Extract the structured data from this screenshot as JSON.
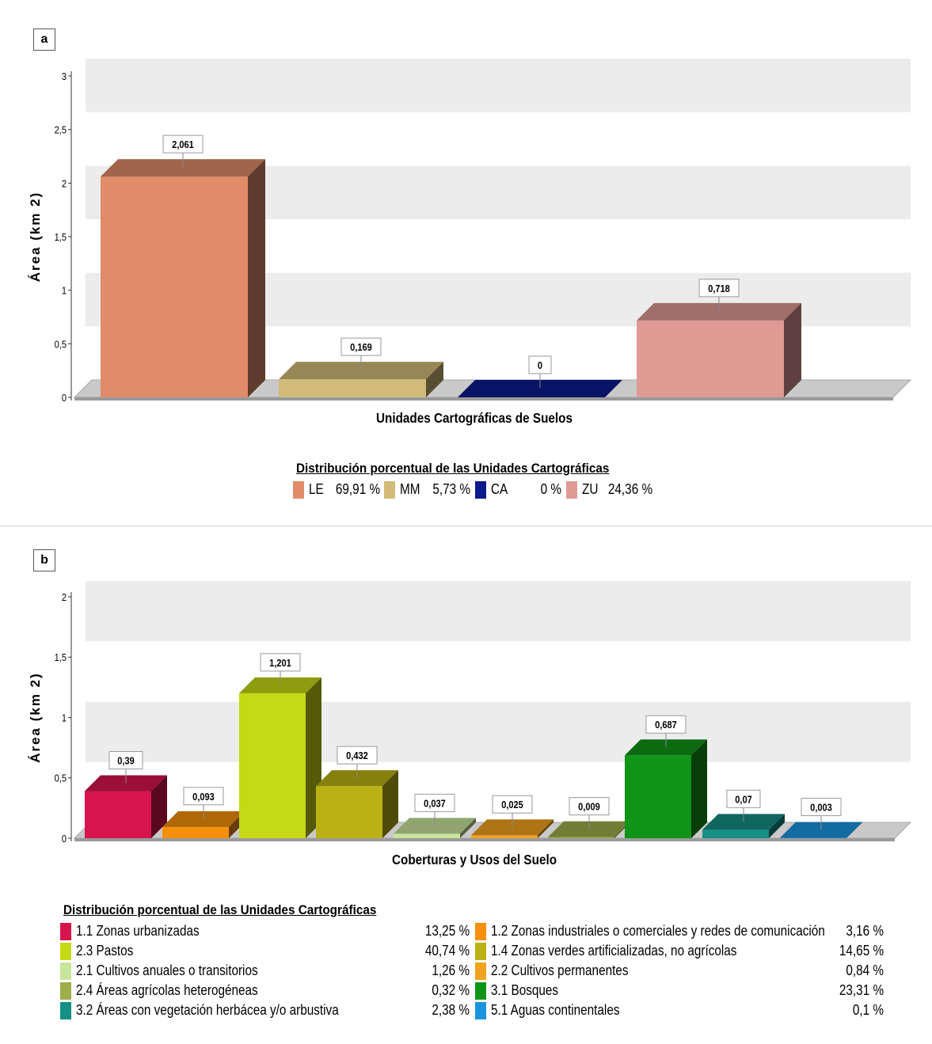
{
  "chart_data": [
    {
      "type": "bar",
      "panel_label": "a",
      "xlabel": "Unidades Cartográficas de Suelos",
      "ylabel": "Área (km 2)",
      "ylim": [
        0,
        3
      ],
      "yticks": [
        "0",
        "0,5",
        "1",
        "1,5",
        "2",
        "2,5",
        "3"
      ],
      "categories": [
        "LE",
        "MM",
        "CA",
        "ZU"
      ],
      "values": [
        2.061,
        0.169,
        0,
        0.718
      ],
      "value_labels": [
        "2,061",
        "0,169",
        "0",
        "0,718"
      ],
      "colors": [
        "#e08c68",
        "#d2bb78",
        "#0a1a8c",
        "#df9a94"
      ],
      "grid_bands": true,
      "legend": {
        "title": "Distribución porcentual de las Unidades Cartográficas",
        "placement": "bottom",
        "items": [
          {
            "code": "LE",
            "label": "LE",
            "pct": "69,91 %",
            "color": "#e08c68"
          },
          {
            "code": "MM",
            "label": "MM",
            "pct": "5,73 %",
            "color": "#d2bb78"
          },
          {
            "code": "CA",
            "label": "CA",
            "pct": "0 %",
            "color": "#0a1a8c"
          },
          {
            "code": "ZU",
            "label": "ZU",
            "pct": "24,36 %",
            "color": "#df9a94"
          }
        ]
      }
    },
    {
      "type": "bar",
      "panel_label": "b",
      "xlabel": "Coberturas y Usos del Suelo",
      "ylabel": "Área (km 2)",
      "ylim": [
        0,
        2
      ],
      "yticks": [
        "0",
        "0,5",
        "1",
        "1,5",
        "2"
      ],
      "categories": [
        "1.1",
        "1.2",
        "2.3",
        "1.4",
        "2.1",
        "2.2",
        "2.4",
        "3.1",
        "3.2",
        "5.1"
      ],
      "values": [
        0.39,
        0.093,
        1.201,
        0.432,
        0.037,
        0.025,
        0.009,
        0.687,
        0.07,
        0.003
      ],
      "value_labels": [
        "0,39",
        "0,093",
        "1,201",
        "0,432",
        "0,037",
        "0,025",
        "0,009",
        "0,687",
        "0,07",
        "0,003"
      ],
      "colors": [
        "#d6154c",
        "#f6900a",
        "#c5d914",
        "#bab214",
        "#c8e59c",
        "#f1a320",
        "#9eae4a",
        "#109418",
        "#168f85",
        "#1995e0"
      ],
      "grid_bands": true,
      "legend": {
        "title": "Distribución porcentual de las Unidades Cartográficas",
        "placement": "bottom",
        "left": [
          {
            "code": "1.1",
            "label": "1.1  Zonas urbanizadas",
            "pct": "13,25 %",
            "color": "#d6154c"
          },
          {
            "code": "2.3",
            "label": "2.3  Pastos",
            "pct": "40,74 %",
            "color": "#c5d914"
          },
          {
            "code": "2.1",
            "label": "2.1  Cultivos anuales o transitorios",
            "pct": "1,26 %",
            "color": "#c8e59c"
          },
          {
            "code": "2.4",
            "label": "2.4  Áreas agrícolas heterogéneas",
            "pct": "0,32 %",
            "color": "#9eae4a"
          },
          {
            "code": "3.2",
            "label": "3.2  Áreas con vegetación herbácea y/o arbustiva",
            "pct": "2,38 %",
            "color": "#168f85"
          }
        ],
        "right": [
          {
            "code": "1.2",
            "label": "1.2  Zonas industriales o comerciales y redes de comunicación",
            "pct": "3,16 %",
            "color": "#f6900a"
          },
          {
            "code": "1.4",
            "label": "1.4  Zonas verdes artificializadas, no agrícolas",
            "pct": "14,65 %",
            "color": "#bab214"
          },
          {
            "code": "2.2",
            "label": "2.2  Cultivos permanentes",
            "pct": "0,84 %",
            "color": "#f1a320"
          },
          {
            "code": "3.1",
            "label": "3.1  Bosques",
            "pct": "23,31 %",
            "color": "#109418"
          },
          {
            "code": "5.1",
            "label": "5.1  Aguas continentales",
            "pct": "0,1 %",
            "color": "#1995e0"
          }
        ]
      }
    }
  ]
}
